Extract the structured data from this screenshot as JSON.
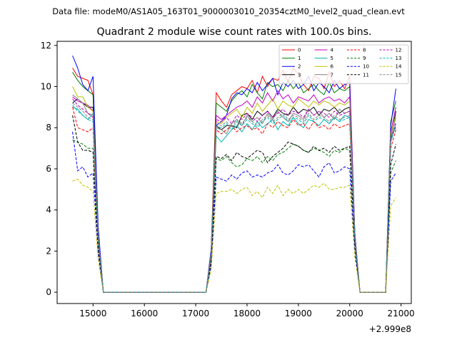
{
  "figure": {
    "suptitle": "Data file: modeM0/AS1A05_163T01_9000003010_20354cztM0_level2_quad_clean.evt"
  },
  "chart_data": {
    "type": "line",
    "title": "Quadrant 2 module wise count rates with 100.0s bins.",
    "xlabel": "",
    "ylabel": "",
    "x_offset_label": "+2.999e8",
    "x_offset": 299900000,
    "x_relative": [
      14600,
      14700,
      14800,
      14900,
      15000,
      15100,
      15200,
      15300,
      17200,
      17300,
      17400,
      17500,
      17600,
      17700,
      17800,
      17900,
      18000,
      18100,
      18200,
      18300,
      18400,
      18500,
      18600,
      18700,
      18800,
      18900,
      19000,
      19100,
      19200,
      19300,
      19400,
      19500,
      19600,
      19700,
      19800,
      19900,
      20000,
      20100,
      20200,
      20700,
      20800,
      20900
    ],
    "xlim": [
      14300,
      21200
    ],
    "ylim": [
      -0.55,
      12.2
    ],
    "xticks": [
      15000,
      16000,
      17000,
      18000,
      19000,
      20000,
      21000
    ],
    "yticks": [
      0,
      2,
      4,
      6,
      8,
      10,
      12
    ],
    "grid": false,
    "legend": {
      "placement": "top-right",
      "columns": 4
    },
    "series": [
      {
        "name": "0",
        "color": "#ff0000",
        "style": "solid",
        "values": [
          10.9,
          10.5,
          10.4,
          10.3,
          9.6,
          3.0,
          0,
          0,
          0,
          2.0,
          9.7,
          9.3,
          9.0,
          9.6,
          9.8,
          10.0,
          9.9,
          10.3,
          9.7,
          10.5,
          10.0,
          10.4,
          10.3,
          10.8,
          10.2,
          10.9,
          10.6,
          10.1,
          9.8,
          10.5,
          10.4,
          9.9,
          10.7,
          10.0,
          10.3,
          9.9,
          10.5,
          2.9,
          0,
          0,
          7.6,
          8.0
        ]
      },
      {
        "name": "1",
        "color": "#008000",
        "style": "solid",
        "values": [
          10.7,
          10.3,
          10.0,
          9.8,
          9.6,
          3.1,
          0,
          0,
          0,
          2.0,
          9.2,
          9.0,
          8.8,
          9.3,
          9.6,
          9.8,
          9.5,
          10.1,
          9.7,
          9.4,
          10.2,
          10.0,
          10.1,
          9.8,
          10.3,
          9.9,
          10.2,
          9.7,
          9.9,
          10.1,
          9.8,
          9.6,
          10.2,
          9.7,
          9.9,
          9.8,
          10.0,
          2.8,
          0,
          0,
          8.3,
          9.3
        ]
      },
      {
        "name": "2",
        "color": "#0000ff",
        "style": "solid",
        "values": [
          11.5,
          10.9,
          10.1,
          9.8,
          10.5,
          3.2,
          0,
          0,
          0,
          2.1,
          8.1,
          8.3,
          8.6,
          9.4,
          9.7,
          9.6,
          9.9,
          9.7,
          10.2,
          9.8,
          10.1,
          10.4,
          9.6,
          10.2,
          10.0,
          10.3,
          9.9,
          10.1,
          10.5,
          9.8,
          10.2,
          10.0,
          9.7,
          10.3,
          9.9,
          10.1,
          10.2,
          2.9,
          0,
          0,
          8.1,
          9.9
        ]
      },
      {
        "name": "3",
        "color": "#000000",
        "style": "solid",
        "values": [
          9.2,
          9.4,
          9.2,
          9.0,
          9.0,
          2.8,
          0,
          0,
          0,
          1.9,
          8.1,
          7.9,
          8.1,
          8.1,
          8.0,
          8.6,
          8.7,
          8.4,
          8.8,
          8.6,
          8.8,
          8.5,
          8.9,
          8.7,
          8.6,
          9.0,
          8.7,
          8.9,
          8.8,
          9.0,
          8.6,
          8.9,
          8.8,
          9.0,
          8.7,
          8.9,
          9.0,
          2.7,
          0,
          0,
          7.5,
          8.8
        ]
      },
      {
        "name": "4",
        "color": "#c000c0",
        "style": "solid",
        "values": [
          9.5,
          9.3,
          9.2,
          9.1,
          8.8,
          2.8,
          0,
          0,
          0,
          1.9,
          8.6,
          8.4,
          8.6,
          8.8,
          9.0,
          9.1,
          9.3,
          9.0,
          9.5,
          9.2,
          9.7,
          9.3,
          9.8,
          9.4,
          9.6,
          9.2,
          9.5,
          9.4,
          9.3,
          9.6,
          9.2,
          9.4,
          9.5,
          9.3,
          9.4,
          9.2,
          9.5,
          2.8,
          0,
          0,
          7.8,
          9.0
        ]
      },
      {
        "name": "5",
        "color": "#00b0b0",
        "style": "solid",
        "values": [
          9.0,
          8.9,
          8.6,
          8.4,
          8.7,
          2.7,
          0,
          0,
          0,
          1.8,
          7.6,
          7.3,
          7.6,
          7.9,
          8.1,
          7.8,
          8.2,
          7.9,
          8.3,
          8.0,
          8.2,
          8.4,
          7.9,
          8.3,
          8.1,
          8.5,
          8.2,
          8.0,
          8.4,
          8.3,
          8.1,
          8.4,
          8.2,
          8.5,
          8.3,
          8.6,
          8.5,
          2.7,
          0,
          0,
          7.3,
          8.2
        ]
      },
      {
        "name": "6",
        "color": "#c0c000",
        "style": "solid",
        "values": [
          10.0,
          9.5,
          9.5,
          9.0,
          8.8,
          2.8,
          0,
          0,
          0,
          1.9,
          8.3,
          8.2,
          8.5,
          8.7,
          8.9,
          8.5,
          9.0,
          8.7,
          9.2,
          8.8,
          9.1,
          9.4,
          8.9,
          9.3,
          9.1,
          9.0,
          9.4,
          9.2,
          9.0,
          9.3,
          9.1,
          9.3,
          9.2,
          9.0,
          9.2,
          9.1,
          9.3,
          2.8,
          0,
          0,
          7.7,
          8.6
        ]
      },
      {
        "name": "7",
        "color": "#808080",
        "style": "solid",
        "values": [
          9.6,
          9.4,
          9.2,
          8.7,
          8.6,
          2.7,
          0,
          0,
          0,
          1.8,
          8.0,
          7.9,
          7.7,
          8.2,
          8.4,
          8.1,
          8.6,
          8.3,
          8.5,
          8.2,
          8.7,
          8.4,
          8.8,
          8.5,
          8.3,
          8.7,
          8.6,
          8.4,
          8.9,
          8.6,
          8.8,
          8.5,
          8.7,
          8.4,
          8.9,
          8.7,
          8.8,
          2.8,
          0,
          0,
          7.6,
          8.5
        ]
      },
      {
        "name": "8",
        "color": "#ff0000",
        "style": "dashed",
        "values": [
          9.0,
          8.0,
          7.9,
          7.8,
          8.0,
          2.5,
          0,
          0,
          0,
          1.7,
          7.9,
          7.7,
          7.9,
          8.1,
          7.8,
          8.0,
          8.1,
          7.9,
          8.0,
          7.7,
          8.2,
          8.0,
          8.3,
          8.1,
          8.0,
          8.4,
          8.1,
          8.2,
          7.9,
          8.3,
          8.0,
          8.1,
          7.9,
          8.2,
          8.0,
          8.1,
          8.2,
          2.6,
          0,
          0,
          7.0,
          7.9
        ]
      },
      {
        "name": "9",
        "color": "#008000",
        "style": "dashed",
        "values": [
          7.4,
          7.3,
          7.2,
          7.0,
          7.0,
          2.3,
          0,
          0,
          0,
          1.5,
          6.5,
          6.4,
          6.6,
          6.3,
          6.1,
          6.2,
          6.5,
          6.4,
          6.6,
          6.3,
          6.6,
          6.4,
          6.7,
          6.8,
          7.0,
          7.2,
          7.1,
          6.9,
          6.8,
          7.0,
          6.9,
          6.8,
          6.6,
          6.9,
          6.8,
          7.0,
          6.9,
          2.3,
          0,
          0,
          5.8,
          6.4
        ]
      },
      {
        "name": "10",
        "color": "#0000ff",
        "style": "dashed",
        "values": [
          7.8,
          5.9,
          6.1,
          5.6,
          5.8,
          1.9,
          0,
          0,
          0,
          1.3,
          5.6,
          5.5,
          5.4,
          5.7,
          5.5,
          5.8,
          5.9,
          5.6,
          5.7,
          5.6,
          5.8,
          5.9,
          6.2,
          5.8,
          5.7,
          5.9,
          6.2,
          6.1,
          6.2,
          5.9,
          5.6,
          6.1,
          6.3,
          5.8,
          5.9,
          6.1,
          6.0,
          2.0,
          0,
          0,
          5.4,
          5.8
        ]
      },
      {
        "name": "11",
        "color": "#000000",
        "style": "dashed",
        "values": [
          8.6,
          7.3,
          6.9,
          6.9,
          6.8,
          2.2,
          0,
          0,
          0,
          1.5,
          6.6,
          6.5,
          6.7,
          6.4,
          6.8,
          6.6,
          6.5,
          6.7,
          6.9,
          6.8,
          6.3,
          6.6,
          6.8,
          7.0,
          7.3,
          7.2,
          7.1,
          6.9,
          6.8,
          7.1,
          6.9,
          7.0,
          6.8,
          7.1,
          6.9,
          7.0,
          7.1,
          2.4,
          0,
          0,
          6.2,
          7.2
        ]
      },
      {
        "name": "12",
        "color": "#c000c0",
        "style": "dashed",
        "values": [
          9.4,
          9.1,
          8.9,
          8.7,
          8.5,
          2.7,
          0,
          0,
          0,
          1.8,
          8.4,
          8.3,
          8.5,
          8.2,
          8.6,
          8.4,
          8.7,
          8.5,
          8.3,
          8.6,
          8.8,
          8.5,
          8.7,
          8.9,
          8.6,
          8.8,
          8.7,
          8.5,
          8.9,
          8.6,
          8.8,
          8.7,
          8.5,
          8.8,
          8.6,
          8.7,
          8.8,
          2.8,
          0,
          0,
          7.4,
          8.3
        ]
      },
      {
        "name": "13",
        "color": "#00b0b0",
        "style": "dashed",
        "values": [
          9.1,
          8.8,
          8.6,
          8.4,
          8.3,
          2.6,
          0,
          0,
          0,
          1.8,
          8.1,
          8.0,
          8.2,
          7.9,
          8.3,
          8.1,
          8.4,
          8.2,
          8.0,
          8.3,
          8.5,
          8.2,
          8.4,
          8.6,
          8.3,
          8.5,
          8.4,
          8.2,
          8.6,
          8.3,
          8.5,
          8.4,
          8.2,
          8.5,
          8.3,
          8.4,
          8.5,
          2.7,
          0,
          0,
          7.3,
          8.1
        ]
      },
      {
        "name": "14",
        "color": "#c0c000",
        "style": "dashed",
        "values": [
          5.4,
          5.5,
          5.2,
          5.1,
          4.9,
          1.6,
          0,
          0,
          0,
          1.1,
          4.8,
          4.9,
          4.9,
          5.0,
          4.8,
          5.0,
          5.1,
          4.7,
          4.9,
          4.6,
          5.1,
          4.8,
          5.2,
          4.7,
          5.0,
          4.8,
          5.0,
          4.8,
          5.0,
          5.2,
          5.1,
          5.3,
          5.0,
          5.0,
          5.1,
          5.1,
          5.2,
          1.7,
          0,
          0,
          4.2,
          4.6
        ]
      },
      {
        "name": "15",
        "color": "#808080",
        "style": "dashed",
        "values": [
          9.2,
          9.0,
          8.8,
          8.5,
          8.4,
          2.6,
          0,
          0,
          0,
          1.8,
          8.2,
          8.1,
          8.3,
          8.0,
          8.4,
          8.2,
          8.5,
          8.3,
          8.1,
          8.4,
          8.6,
          8.3,
          8.5,
          8.7,
          8.4,
          8.6,
          8.5,
          8.3,
          8.7,
          8.4,
          8.6,
          8.5,
          8.3,
          8.6,
          8.4,
          8.5,
          8.6,
          2.7,
          0,
          0,
          7.5,
          8.2
        ]
      }
    ]
  }
}
